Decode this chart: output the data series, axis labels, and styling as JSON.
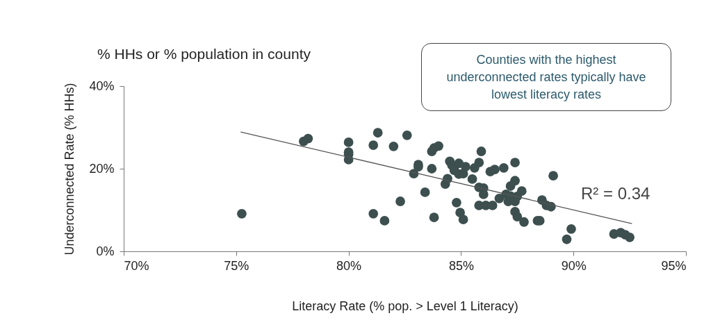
{
  "chart_data": {
    "type": "scatter",
    "title": "% HHs or % population in county",
    "xlabel": "Literacy Rate (% pop. > Level 1 Literacy)",
    "ylabel": "Underconnected Rate (% HHs)",
    "xlim": [
      70,
      95
    ],
    "xticks": [
      {
        "value": 70,
        "label": "70%"
      },
      {
        "value": 75,
        "label": "75%"
      },
      {
        "value": 80,
        "label": "80%"
      },
      {
        "value": 85,
        "label": "85%"
      },
      {
        "value": 90,
        "label": "90%"
      },
      {
        "value": 95,
        "label": "95%"
      }
    ],
    "ylim": [
      0,
      40
    ],
    "yticks": [
      {
        "value": 0,
        "label": "0%"
      },
      {
        "value": 20,
        "label": "20%"
      },
      {
        "value": 40,
        "label": "40%"
      }
    ],
    "grid": false,
    "marker": "circle",
    "annotations": [
      "Counties with the highest underconnected rates typically have lowest literacy rates",
      "R² = 0.34"
    ],
    "series": [
      {
        "type": "scatter",
        "color": "#3d4f4f",
        "x": [
          75.25,
          78.0,
          78.2,
          80.0,
          80.0,
          80.0,
          80.0,
          81.1,
          81.1,
          81.3,
          81.6,
          82.0,
          82.3,
          82.6,
          82.9,
          83.1,
          83.1,
          83.4,
          83.7,
          83.8,
          83.7,
          83.8,
          84.0,
          84.3,
          84.4,
          84.5,
          84.6,
          84.9,
          84.7,
          84.9,
          84.8,
          84.96,
          85.1,
          85.1,
          85.2,
          85.5,
          85.6,
          85.8,
          85.9,
          85.8,
          86.0,
          85.8,
          86.1,
          86.4,
          86.0,
          86.3,
          86.5,
          86.7,
          86.9,
          87.0,
          87.2,
          87.4,
          87.1,
          87.2,
          87.4,
          87.4,
          87.5,
          87.8,
          87.4,
          87.5,
          87.7,
          88.4,
          88.5,
          88.6,
          88.8,
          89.0,
          89.1,
          89.9,
          89.7,
          91.8,
          92.1,
          92.3,
          92.5
        ],
        "values": [
          9.1,
          26.6,
          27.3,
          26.4,
          23.5,
          22.2,
          24.0,
          9.1,
          25.7,
          28.7,
          7.4,
          25.4,
          12.1,
          28.1,
          18.8,
          20.5,
          21.0,
          14.3,
          20.0,
          8.2,
          24.2,
          25.0,
          25.5,
          16.3,
          17.6,
          21.8,
          20.8,
          21.3,
          19.6,
          18.7,
          11.8,
          9.4,
          7.7,
          18.8,
          20.5,
          17.5,
          20.2,
          21.5,
          24.2,
          15.5,
          15.3,
          11.1,
          11.1,
          11.1,
          13.8,
          19.3,
          19.8,
          12.8,
          20.2,
          13.8,
          15.8,
          21.5,
          12.1,
          13.4,
          12.1,
          9.6,
          8.4,
          7.1,
          17.1,
          13.3,
          14.6,
          7.4,
          7.4,
          12.4,
          11.1,
          10.8,
          18.3,
          5.4,
          2.9,
          4.2,
          4.5,
          4.0,
          3.4
        ]
      },
      {
        "type": "line",
        "color": "#555555",
        "line_style": "solid",
        "marker": "none",
        "x": [
          75.2,
          92.6
        ],
        "values": [
          28.9,
          6.7
        ]
      }
    ]
  }
}
